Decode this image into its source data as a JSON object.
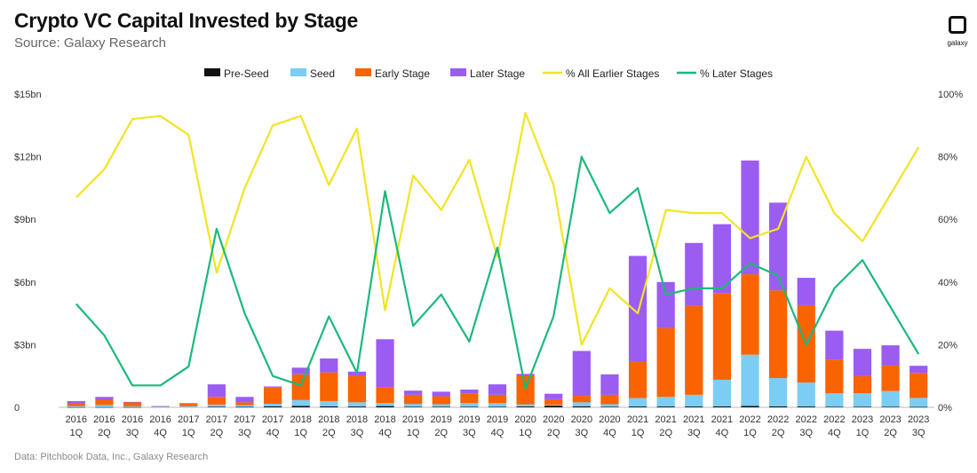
{
  "header": {
    "title": "Crypto VC Capital Invested by Stage",
    "subtitle": "Source: Galaxy Research"
  },
  "footnote": "Data: Pitchbook Data, Inc., Galaxy Research",
  "logo": {
    "text": "galaxy"
  },
  "colors": {
    "pre_seed": "#111111",
    "seed": "#7ccdf4",
    "early": "#f96300",
    "later": "#9b5cf2",
    "earlier_pct": "#f2e424",
    "later_pct": "#1cb97a"
  },
  "chart_data": {
    "type": "bar",
    "stacked": true,
    "title": "Crypto VC Capital Invested by Stage",
    "y_left_ticks": [
      "$15bn",
      "$12bn",
      "$9bn",
      "$6bn",
      "$3bn",
      "0"
    ],
    "y_left_range": [
      0,
      15
    ],
    "y_right_ticks": [
      "100%",
      "80%",
      "60%",
      "40%",
      "20%",
      "0%"
    ],
    "y_right_range": [
      0,
      100
    ],
    "legend_position": "top",
    "categories": [
      [
        "2016",
        "1Q"
      ],
      [
        "2016",
        "2Q"
      ],
      [
        "2016",
        "3Q"
      ],
      [
        "2016",
        "4Q"
      ],
      [
        "2017",
        "1Q"
      ],
      [
        "2017",
        "2Q"
      ],
      [
        "2017",
        "3Q"
      ],
      [
        "2017",
        "4Q"
      ],
      [
        "2018",
        "1Q"
      ],
      [
        "2018",
        "2Q"
      ],
      [
        "2018",
        "3Q"
      ],
      [
        "2018",
        "4Q"
      ],
      [
        "2019",
        "1Q"
      ],
      [
        "2019",
        "2Q"
      ],
      [
        "2019",
        "3Q"
      ],
      [
        "2019",
        "4Q"
      ],
      [
        "2020",
        "1Q"
      ],
      [
        "2020",
        "2Q"
      ],
      [
        "2020",
        "3Q"
      ],
      [
        "2020",
        "4Q"
      ],
      [
        "2021",
        "1Q"
      ],
      [
        "2021",
        "2Q"
      ],
      [
        "2021",
        "3Q"
      ],
      [
        "2021",
        "4Q"
      ],
      [
        "2022",
        "1Q"
      ],
      [
        "2022",
        "2Q"
      ],
      [
        "2022",
        "3Q"
      ],
      [
        "2022",
        "4Q"
      ],
      [
        "2023",
        "1Q"
      ],
      [
        "2023",
        "2Q"
      ],
      [
        "2023",
        "3Q"
      ]
    ],
    "bar_series": [
      {
        "name": "Pre-Seed",
        "key": "pre_seed",
        "values": [
          0.01,
          0.01,
          0.01,
          0.0,
          0.0,
          0.03,
          0.02,
          0.05,
          0.07,
          0.05,
          0.04,
          0.06,
          0.03,
          0.03,
          0.03,
          0.03,
          0.04,
          0.08,
          0.05,
          0.03,
          0.04,
          0.04,
          0.04,
          0.05,
          0.07,
          0.05,
          0.04,
          0.03,
          0.03,
          0.03,
          0.02
        ]
      },
      {
        "name": "Seed",
        "key": "seed",
        "values": [
          0.05,
          0.1,
          0.04,
          0.03,
          0.05,
          0.1,
          0.08,
          0.12,
          0.28,
          0.25,
          0.2,
          0.14,
          0.13,
          0.12,
          0.17,
          0.17,
          0.1,
          0.04,
          0.19,
          0.12,
          0.4,
          0.46,
          0.56,
          1.27,
          2.45,
          1.35,
          1.15,
          0.64,
          0.64,
          0.75,
          0.43
        ]
      },
      {
        "name": "Early Stage",
        "key": "early",
        "values": [
          0.15,
          0.25,
          0.2,
          0.02,
          0.12,
          0.37,
          0.14,
          0.78,
          1.23,
          1.37,
          1.27,
          0.77,
          0.44,
          0.38,
          0.45,
          0.4,
          1.39,
          0.27,
          0.31,
          0.45,
          1.75,
          3.3,
          4.25,
          4.15,
          3.85,
          4.2,
          3.7,
          1.62,
          0.82,
          1.22,
          1.2
        ]
      },
      {
        "name": "Later Stage",
        "key": "later",
        "values": [
          0.09,
          0.14,
          0.01,
          0.01,
          0.03,
          0.6,
          0.26,
          0.05,
          0.32,
          0.67,
          0.2,
          2.29,
          0.2,
          0.22,
          0.2,
          0.5,
          0.07,
          0.26,
          2.15,
          0.98,
          5.06,
          2.2,
          3.02,
          3.3,
          5.45,
          4.2,
          1.31,
          1.38,
          1.31,
          0.97,
          0.34
        ]
      }
    ],
    "line_series": [
      {
        "name": "% All Earlier Stages",
        "key": "earlier_pct",
        "values": [
          67,
          76,
          92,
          93,
          87,
          43,
          70,
          90,
          93,
          71,
          89,
          31,
          74,
          63,
          79,
          48,
          94,
          71,
          20,
          38,
          30,
          63,
          62,
          62,
          54,
          57,
          80,
          62,
          53,
          68,
          83
        ]
      },
      {
        "name": "% Later Stages",
        "key": "later_pct",
        "values": [
          33,
          23,
          7,
          7,
          13,
          57,
          30,
          10,
          7,
          29,
          11,
          69,
          26,
          36,
          21,
          51,
          6,
          29,
          80,
          62,
          70,
          36,
          38,
          38,
          46,
          42,
          20,
          38,
          47,
          32,
          17
        ]
      }
    ]
  }
}
